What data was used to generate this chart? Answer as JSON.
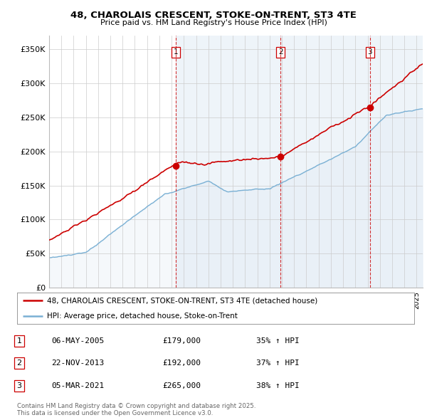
{
  "title": "48, CHAROLAIS CRESCENT, STOKE-ON-TRENT, ST3 4TE",
  "subtitle": "Price paid vs. HM Land Registry's House Price Index (HPI)",
  "ylim": [
    0,
    370000
  ],
  "yticks": [
    0,
    50000,
    100000,
    150000,
    200000,
    250000,
    300000,
    350000
  ],
  "ytick_labels": [
    "£0",
    "£50K",
    "£100K",
    "£150K",
    "£200K",
    "£250K",
    "£300K",
    "£350K"
  ],
  "xlim_start": 1995.0,
  "xlim_end": 2025.5,
  "sale_dates": [
    2005.35,
    2013.9,
    2021.18
  ],
  "sale_prices": [
    179000,
    192000,
    265000
  ],
  "sale_labels": [
    "1",
    "2",
    "3"
  ],
  "vline_color": "#cc0000",
  "hpi_color": "#7ab0d4",
  "hpi_fill_color": "#deeaf5",
  "price_color": "#cc0000",
  "marker_color": "#cc0000",
  "legend_label_price": "48, CHAROLAIS CRESCENT, STOKE-ON-TRENT, ST3 4TE (detached house)",
  "legend_label_hpi": "HPI: Average price, detached house, Stoke-on-Trent",
  "table_rows": [
    [
      "1",
      "06-MAY-2005",
      "£179,000",
      "35% ↑ HPI"
    ],
    [
      "2",
      "22-NOV-2013",
      "£192,000",
      "37% ↑ HPI"
    ],
    [
      "3",
      "05-MAR-2021",
      "£265,000",
      "38% ↑ HPI"
    ]
  ],
  "footnote": "Contains HM Land Registry data © Crown copyright and database right 2025.\nThis data is licensed under the Open Government Licence v3.0.",
  "background_color": "#ffffff",
  "grid_color": "#cccccc"
}
